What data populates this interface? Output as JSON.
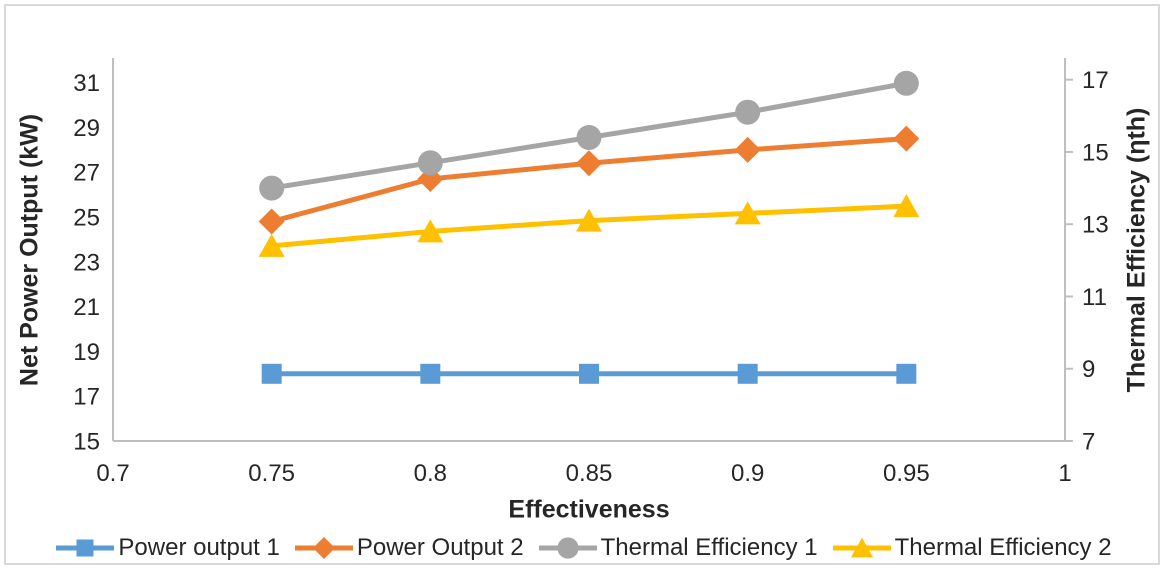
{
  "chart_data": {
    "type": "line",
    "title": "",
    "xlabel": "Effectiveness",
    "x": [
      0.75,
      0.8,
      0.85,
      0.9,
      0.95
    ],
    "x_axis": {
      "min": 0.7,
      "max": 1.0,
      "ticks": [
        0.7,
        0.75,
        0.8,
        0.85,
        0.9,
        0.95,
        1
      ]
    },
    "left_axis": {
      "label": "Net Power Output (kW)",
      "min": 15,
      "max": 32.1,
      "ticks": [
        15,
        17,
        19,
        21,
        23,
        25,
        27,
        29,
        31
      ]
    },
    "right_axis": {
      "label": "Thermal Efficiency (ηth)",
      "min": 7,
      "max": 17.6,
      "ticks": [
        7,
        9,
        11,
        13,
        15,
        17
      ]
    },
    "grid": false,
    "legend_position": "bottom",
    "series": [
      {
        "name": "Power output 1",
        "axis": "left",
        "color": "#5B9BD5",
        "marker": "square",
        "values": [
          18.0,
          18.0,
          18.0,
          18.0,
          18.0
        ]
      },
      {
        "name": "Power Output 2",
        "axis": "left",
        "color": "#ED7D31",
        "marker": "diamond",
        "values": [
          24.8,
          26.7,
          27.4,
          28.0,
          28.5
        ]
      },
      {
        "name": "Thermal Efficiency 1",
        "axis": "right",
        "color": "#A5A5A5",
        "marker": "circle",
        "values": [
          14.0,
          14.7,
          15.4,
          16.1,
          16.9
        ]
      },
      {
        "name": "Thermal Efficiency 2",
        "axis": "right",
        "color": "#FFC000",
        "marker": "triangle",
        "values": [
          12.4,
          12.8,
          13.1,
          13.3,
          13.5
        ]
      }
    ],
    "colors": {
      "axis_line": "#BFBFBF",
      "text": "#262626",
      "frame_border": "#D9D9D9",
      "background": "#FFFFFF"
    }
  }
}
